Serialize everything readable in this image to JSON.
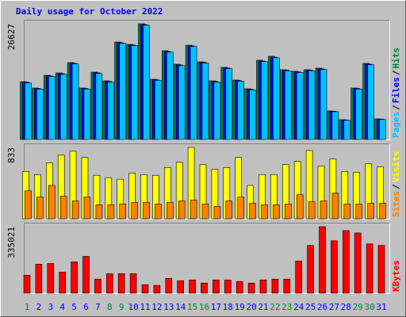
{
  "chart_data": [
    {
      "type": "bar",
      "title": "Daily usage for October 2022",
      "ylim": [
        0,
        26627
      ],
      "yticks": [
        26627
      ],
      "separator": "/",
      "series": [
        {
          "name": "Pages",
          "color": "#00c0ff",
          "values": [
            13000,
            11600,
            14500,
            15000,
            17400,
            11600,
            15200,
            13200,
            22100,
            21600,
            26300,
            13600,
            20100,
            17000,
            21400,
            17600,
            13200,
            16300,
            13400,
            11400,
            17900,
            18800,
            15800,
            15400,
            15800,
            16100,
            6400,
            4400,
            11600,
            17200,
            4600
          ]
        },
        {
          "name": "Files",
          "color": "#0000ff",
          "values": [
            13200,
            11750,
            14650,
            15150,
            17550,
            11750,
            15350,
            13350,
            22250,
            21750,
            26450,
            13750,
            20250,
            17150,
            21550,
            17750,
            13350,
            16450,
            13550,
            11550,
            18050,
            18950,
            15950,
            15550,
            15950,
            16250,
            6500,
            4500,
            11750,
            17350,
            4680
          ]
        },
        {
          "name": "Hits",
          "color": "#008040",
          "values": [
            13300,
            11850,
            14770,
            15320,
            17690,
            11850,
            15500,
            13500,
            22430,
            21880,
            26627,
            13860,
            20430,
            17330,
            21700,
            17870,
            13500,
            16600,
            13680,
            11670,
            18240,
            19150,
            16050,
            15680,
            16050,
            16410,
            6570,
            4560,
            11850,
            17510,
            4740
          ]
        }
      ]
    },
    {
      "type": "bar",
      "ylim": [
        0,
        833
      ],
      "yticks": [
        833
      ],
      "separator": "/",
      "series": [
        {
          "name": "Sites",
          "color": "#ff8000",
          "values": [
            326,
            253,
            389,
            263,
            208,
            253,
            163,
            163,
            172,
            190,
            190,
            172,
            190,
            208,
            217,
            172,
            145,
            208,
            253,
            181,
            163,
            163,
            172,
            281,
            199,
            208,
            299,
            172,
            172,
            181,
            181
          ]
        },
        {
          "name": "Visits",
          "color": "#ffff00",
          "values": [
            552,
            516,
            652,
            742,
            788,
            715,
            507,
            480,
            462,
            534,
            516,
            507,
            598,
            661,
            833,
            634,
            579,
            598,
            715,
            389,
            516,
            516,
            634,
            670,
            797,
            616,
            697,
            552,
            543,
            643,
            607
          ]
        }
      ]
    },
    {
      "type": "bar",
      "ylim": [
        0,
        335021
      ],
      "yticks": [
        335021
      ],
      "series": [
        {
          "name": "KBytes",
          "color": "#ff0000",
          "values": [
            90650,
            145830,
            149770,
            106420,
            157660,
            185250,
            70950,
            98540,
            98540,
            98540,
            43360,
            39410,
            74890,
            63060,
            67000,
            51240,
            67000,
            67000,
            59120,
            51240,
            67000,
            70950,
            70950,
            161600,
            240420,
            335021,
            264080,
            315310,
            303490,
            248310,
            240420
          ]
        }
      ],
      "categories": [
        "1",
        "2",
        "3",
        "4",
        "5",
        "6",
        "7",
        "8",
        "9",
        "10",
        "11",
        "12",
        "13",
        "14",
        "15",
        "16",
        "17",
        "18",
        "19",
        "20",
        "21",
        "22",
        "23",
        "24",
        "25",
        "26",
        "27",
        "28",
        "29",
        "30",
        "31"
      ],
      "category_colors": [
        "#008040",
        "#0000ff",
        "#0000ff",
        "#0000ff",
        "#0000ff",
        "#0000ff",
        "#0000ff",
        "#008040",
        "#008040",
        "#0000ff",
        "#0000ff",
        "#0000ff",
        "#0000ff",
        "#0000ff",
        "#008040",
        "#008040",
        "#0000ff",
        "#0000ff",
        "#0000ff",
        "#0000ff",
        "#0000ff",
        "#008040",
        "#008040",
        "#0000ff",
        "#0000ff",
        "#0000ff",
        "#0000ff",
        "#0000ff",
        "#008040",
        "#008040",
        "#0000ff"
      ]
    }
  ]
}
